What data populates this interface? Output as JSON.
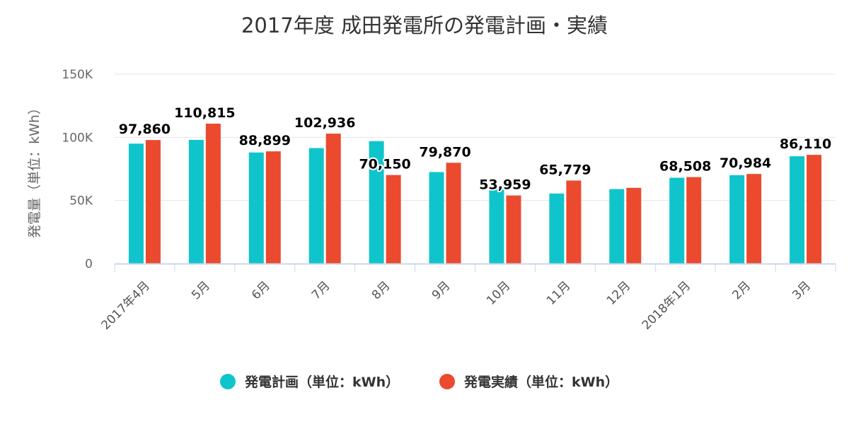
{
  "chart_data": {
    "type": "bar",
    "title": "2017年度 成田発電所の発電計画・実績",
    "ylabel": "発電量（単位：kWh）",
    "ylim": [
      0,
      150000
    ],
    "yticks": [
      {
        "value": 0,
        "label": "0"
      },
      {
        "value": 50000,
        "label": "50K"
      },
      {
        "value": 100000,
        "label": "100K"
      },
      {
        "value": 150000,
        "label": "150K"
      }
    ],
    "grid": true,
    "legend_position": "bottom",
    "categories": [
      "2017年4月",
      "5月",
      "6月",
      "7月",
      "8月",
      "9月",
      "10月",
      "11月",
      "12月",
      "2018年1月",
      "2月",
      "3月"
    ],
    "series": [
      {
        "name": "発電計画（単位：kWh）",
        "color": "#10c4cc",
        "values": [
          95000,
          98000,
          88000,
          91500,
          97000,
          72500,
          62000,
          55500,
          59000,
          68000,
          70000,
          85000
        ]
      },
      {
        "name": "発電実績（単位：kWh）",
        "color": "#eb4a2e",
        "values": [
          97860,
          110815,
          88899,
          102936,
          70150,
          79870,
          53959,
          65779,
          60000,
          68508,
          70984,
          86110
        ]
      }
    ],
    "data_labels": [
      "97,860",
      "110,815",
      "88,899",
      "102,936",
      "70,150",
      "79,870",
      "53,959",
      "65,779",
      "",
      "68,508",
      "70,984",
      "86,110"
    ]
  }
}
